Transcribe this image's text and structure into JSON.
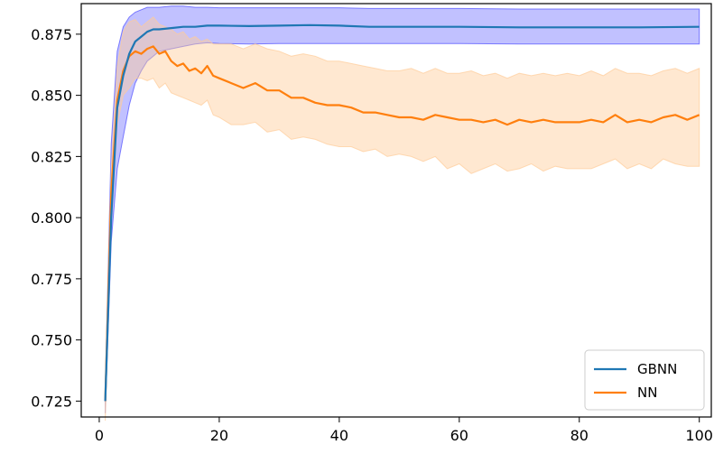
{
  "chart_data": {
    "type": "line",
    "title": "",
    "xlabel": "",
    "ylabel": "",
    "xlim": [
      -3,
      102
    ],
    "ylim": [
      0.7185,
      0.8875
    ],
    "x_ticks": [
      0,
      20,
      40,
      60,
      80,
      100
    ],
    "x_tick_labels": [
      "0",
      "20",
      "40",
      "60",
      "80",
      "100"
    ],
    "y_ticks": [
      0.725,
      0.75,
      0.775,
      0.8,
      0.825,
      0.85,
      0.875
    ],
    "y_tick_labels": [
      "0.725",
      "0.750",
      "0.775",
      "0.800",
      "0.825",
      "0.850",
      "0.875"
    ],
    "grid": false,
    "legend_position": "lower-right",
    "series": [
      {
        "name": "GBNN",
        "color": "#1f77b4",
        "band_color": "#4d4dff",
        "x": [
          1,
          2,
          3,
          4,
          5,
          6,
          7,
          8,
          9,
          10,
          12,
          14,
          16,
          18,
          20,
          25,
          30,
          35,
          40,
          45,
          50,
          60,
          70,
          80,
          90,
          100
        ],
        "values": [
          0.725,
          0.8,
          0.845,
          0.858,
          0.867,
          0.872,
          0.874,
          0.876,
          0.877,
          0.877,
          0.8775,
          0.878,
          0.878,
          0.8785,
          0.8785,
          0.8783,
          0.8785,
          0.8787,
          0.8785,
          0.878,
          0.878,
          0.878,
          0.8778,
          0.8778,
          0.8778,
          0.878
        ],
        "lower": [
          0.72,
          0.79,
          0.82,
          0.833,
          0.846,
          0.855,
          0.86,
          0.864,
          0.866,
          0.868,
          0.869,
          0.87,
          0.871,
          0.8715,
          0.8712,
          0.871,
          0.8712,
          0.8712,
          0.8712,
          0.8712,
          0.8712,
          0.8712,
          0.871,
          0.871,
          0.871,
          0.871
        ],
        "upper": [
          0.73,
          0.83,
          0.868,
          0.878,
          0.882,
          0.884,
          0.885,
          0.886,
          0.886,
          0.886,
          0.8865,
          0.8865,
          0.886,
          0.886,
          0.8858,
          0.8858,
          0.8858,
          0.8858,
          0.8858,
          0.8855,
          0.8855,
          0.8855,
          0.8853,
          0.8853,
          0.8853,
          0.8853
        ]
      },
      {
        "name": "NN",
        "color": "#ff7f0e",
        "band_color": "#ffcc99",
        "x": [
          1,
          2,
          3,
          4,
          5,
          6,
          7,
          8,
          9,
          10,
          11,
          12,
          13,
          14,
          15,
          16,
          17,
          18,
          19,
          20,
          22,
          24,
          26,
          28,
          30,
          32,
          34,
          36,
          38,
          40,
          42,
          44,
          46,
          48,
          50,
          52,
          54,
          56,
          58,
          60,
          62,
          64,
          66,
          68,
          70,
          72,
          74,
          76,
          78,
          80,
          82,
          84,
          86,
          88,
          90,
          92,
          94,
          96,
          98,
          100
        ],
        "values": [
          0.725,
          0.81,
          0.848,
          0.86,
          0.866,
          0.868,
          0.867,
          0.869,
          0.87,
          0.867,
          0.868,
          0.864,
          0.862,
          0.863,
          0.86,
          0.861,
          0.859,
          0.862,
          0.858,
          0.857,
          0.855,
          0.853,
          0.855,
          0.852,
          0.852,
          0.849,
          0.849,
          0.847,
          0.846,
          0.846,
          0.845,
          0.843,
          0.843,
          0.842,
          0.841,
          0.841,
          0.84,
          0.842,
          0.841,
          0.84,
          0.84,
          0.839,
          0.84,
          0.838,
          0.84,
          0.839,
          0.84,
          0.839,
          0.839,
          0.839,
          0.84,
          0.839,
          0.842,
          0.839,
          0.84,
          0.839,
          0.841,
          0.842,
          0.84,
          0.842
        ],
        "lower": [
          0.717,
          0.8,
          0.838,
          0.85,
          0.853,
          0.857,
          0.857,
          0.856,
          0.857,
          0.853,
          0.855,
          0.851,
          0.85,
          0.849,
          0.848,
          0.847,
          0.846,
          0.848,
          0.842,
          0.841,
          0.838,
          0.838,
          0.839,
          0.835,
          0.836,
          0.832,
          0.833,
          0.832,
          0.83,
          0.829,
          0.829,
          0.827,
          0.828,
          0.825,
          0.826,
          0.825,
          0.823,
          0.825,
          0.82,
          0.822,
          0.818,
          0.82,
          0.822,
          0.819,
          0.82,
          0.822,
          0.819,
          0.821,
          0.82,
          0.82,
          0.82,
          0.822,
          0.824,
          0.82,
          0.822,
          0.82,
          0.824,
          0.822,
          0.821,
          0.821
        ],
        "upper": [
          0.733,
          0.82,
          0.862,
          0.876,
          0.88,
          0.881,
          0.878,
          0.88,
          0.882,
          0.879,
          0.878,
          0.877,
          0.875,
          0.876,
          0.873,
          0.874,
          0.872,
          0.873,
          0.871,
          0.871,
          0.871,
          0.869,
          0.871,
          0.869,
          0.868,
          0.866,
          0.867,
          0.866,
          0.864,
          0.864,
          0.863,
          0.862,
          0.861,
          0.86,
          0.86,
          0.861,
          0.859,
          0.861,
          0.859,
          0.859,
          0.86,
          0.858,
          0.859,
          0.857,
          0.859,
          0.858,
          0.859,
          0.858,
          0.859,
          0.858,
          0.86,
          0.858,
          0.861,
          0.859,
          0.859,
          0.858,
          0.86,
          0.861,
          0.859,
          0.861
        ]
      }
    ]
  }
}
